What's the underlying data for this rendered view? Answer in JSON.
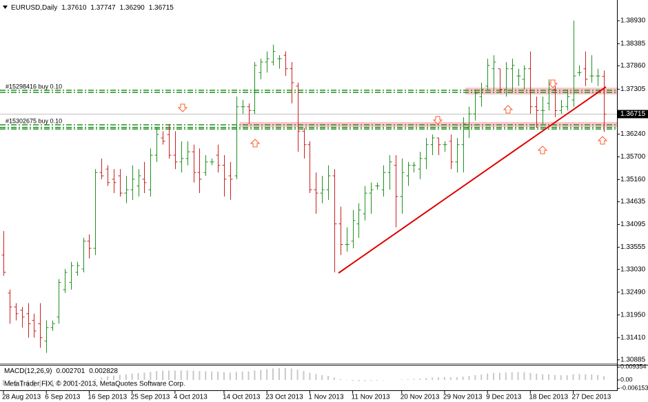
{
  "chart_data": [
    {
      "type": "ohlc",
      "title": "EURUSD,Daily",
      "header_values": [
        "1.37610",
        "1.37747",
        "1.36290",
        "1.36715"
      ],
      "categories": [
        "28 Aug 2013",
        null,
        null,
        null,
        null,
        null,
        null,
        "6 Sep 2013",
        null,
        null,
        null,
        null,
        null,
        null,
        "16 Sep 2013",
        null,
        null,
        null,
        null,
        null,
        null,
        "25 Sep 2013",
        null,
        null,
        null,
        null,
        null,
        null,
        "4 Oct 2013",
        null,
        null,
        null,
        null,
        null,
        null,
        null,
        "14 Oct 2013",
        null,
        null,
        null,
        null,
        null,
        null,
        "23 Oct 2013",
        null,
        null,
        null,
        null,
        null,
        null,
        "1 Nov 2013",
        null,
        null,
        null,
        null,
        null,
        null,
        "11 Nov 2013",
        null,
        null,
        null,
        null,
        null,
        null,
        null,
        "20 Nov 2013",
        null,
        null,
        null,
        null,
        null,
        null,
        "29 Nov 2013",
        null,
        null,
        null,
        null,
        null,
        null,
        "9 Dec 2013",
        null,
        null,
        null,
        null,
        null,
        null,
        "18 Dec 2013",
        null,
        null,
        null,
        null,
        null,
        null,
        "27 Dec 2013",
        null,
        null,
        null,
        null,
        null
      ],
      "open": [
        1.3337,
        1.3247,
        1.3214,
        1.3206,
        1.3198,
        1.3182,
        1.3174,
        1.3133,
        1.3165,
        1.319,
        1.3255,
        1.3272,
        1.3296,
        1.3304,
        1.337,
        1.3353,
        1.3533,
        1.3541,
        1.3517,
        1.3525,
        1.3484,
        1.3492,
        1.3501,
        1.3517,
        1.3492,
        1.3574,
        1.3615,
        1.3623,
        1.3574,
        1.3558,
        1.3566,
        1.3582,
        1.3533,
        1.3533,
        1.3558,
        1.3574,
        1.355,
        1.3525,
        1.3525,
        1.3689,
        1.3689,
        1.368,
        1.377,
        1.3795,
        1.3795,
        1.3803,
        1.3811,
        1.3779,
        1.3738,
        1.3631,
        1.3599,
        1.3492,
        1.3484,
        1.3492,
        1.3525,
        1.3411,
        1.3362,
        1.337,
        1.3411,
        1.3435,
        1.3484,
        1.3501,
        1.3492,
        1.3533,
        1.355,
        1.3476,
        1.3525,
        1.355,
        1.3541,
        1.3566,
        1.3599,
        1.3615,
        1.3599,
        1.3607,
        1.3558,
        1.3599,
        1.3639,
        1.3672,
        1.3713,
        1.3738,
        1.3779,
        1.3779,
        1.373,
        1.3779,
        1.3762,
        1.3754,
        1.3779,
        1.3689,
        1.368,
        1.3697,
        1.373,
        1.368,
        1.3689,
        1.3705,
        1.377,
        1.3779,
        1.3762,
        1.3762,
        1.3761
      ],
      "high": [
        1.3394,
        1.3255,
        1.3223,
        1.3214,
        1.3223,
        1.3198,
        1.3223,
        1.3182,
        1.3182,
        1.328,
        1.3304,
        1.3321,
        1.3321,
        1.3378,
        1.3386,
        1.3541,
        1.3566,
        1.355,
        1.3541,
        1.3541,
        1.3525,
        1.355,
        1.3541,
        1.3558,
        1.359,
        1.3639,
        1.3631,
        1.3648,
        1.3631,
        1.3607,
        1.3607,
        1.3599,
        1.359,
        1.3574,
        1.3566,
        1.3599,
        1.3574,
        1.3558,
        1.3713,
        1.3705,
        1.3697,
        1.3795,
        1.3803,
        1.382,
        1.3836,
        1.3811,
        1.382,
        1.3795,
        1.3746,
        1.3639,
        1.3607,
        1.3533,
        1.3525,
        1.355,
        1.3541,
        1.3452,
        1.3403,
        1.3444,
        1.346,
        1.3501,
        1.3509,
        1.3509,
        1.355,
        1.3574,
        1.3574,
        1.3566,
        1.3558,
        1.3558,
        1.3582,
        1.3615,
        1.3623,
        1.3615,
        1.3607,
        1.3623,
        1.3615,
        1.3664,
        1.3689,
        1.373,
        1.3746,
        1.3803,
        1.3811,
        1.3779,
        1.3795,
        1.3803,
        1.3779,
        1.3787,
        1.382,
        1.3713,
        1.3713,
        1.3754,
        1.3738,
        1.3705,
        1.373,
        1.3893,
        1.3787,
        1.382,
        1.3811,
        1.3779,
        1.37747
      ],
      "low": [
        1.3288,
        1.3174,
        1.3182,
        1.3165,
        1.3141,
        1.3141,
        1.3117,
        1.3105,
        1.3157,
        1.3174,
        1.3247,
        1.3255,
        1.3288,
        1.3296,
        1.3329,
        1.3337,
        1.3517,
        1.3501,
        1.3484,
        1.3476,
        1.346,
        1.3468,
        1.3476,
        1.3484,
        1.3476,
        1.3558,
        1.3599,
        1.3566,
        1.3541,
        1.3533,
        1.355,
        1.3509,
        1.3484,
        1.3525,
        1.355,
        1.3533,
        1.3476,
        1.3468,
        1.3517,
        1.3672,
        1.3648,
        1.3672,
        1.3754,
        1.377,
        1.3787,
        1.3779,
        1.3762,
        1.3697,
        1.3582,
        1.3566,
        1.3484,
        1.3435,
        1.346,
        1.3468,
        1.3296,
        1.3337,
        1.3345,
        1.3353,
        1.3378,
        1.3419,
        1.3435,
        1.3492,
        1.3476,
        1.3492,
        1.3403,
        1.3435,
        1.3501,
        1.3533,
        1.3517,
        1.3541,
        1.3574,
        1.3574,
        1.3582,
        1.3541,
        1.3533,
        1.3533,
        1.3615,
        1.3656,
        1.3689,
        1.373,
        1.373,
        1.3722,
        1.3713,
        1.3722,
        1.3738,
        1.373,
        1.3672,
        1.3639,
        1.3648,
        1.368,
        1.3664,
        1.3672,
        1.368,
        1.3689,
        1.3762,
        1.3738,
        1.3746,
        1.3738,
        1.3629
      ],
      "close": [
        1.3296,
        1.3214,
        1.3198,
        1.319,
        1.3174,
        1.3157,
        1.3141,
        1.3165,
        1.3174,
        1.3272,
        1.3296,
        1.3312,
        1.3312,
        1.337,
        1.3353,
        1.3533,
        1.3525,
        1.3509,
        1.3509,
        1.3484,
        1.3492,
        1.3517,
        1.3525,
        1.3509,
        1.3574,
        1.3623,
        1.3607,
        1.3574,
        1.3558,
        1.3566,
        1.3582,
        1.3533,
        1.3517,
        1.3558,
        1.3558,
        1.355,
        1.3517,
        1.3517,
        1.3689,
        1.3689,
        1.368,
        1.3787,
        1.3795,
        1.3803,
        1.382,
        1.3803,
        1.3779,
        1.3746,
        1.3631,
        1.3599,
        1.3492,
        1.3484,
        1.3492,
        1.3525,
        1.3411,
        1.3362,
        1.3362,
        1.3419,
        1.3444,
        1.3484,
        1.3492,
        1.3501,
        1.3533,
        1.3558,
        1.3476,
        1.3533,
        1.355,
        1.355,
        1.3566,
        1.3599,
        1.3615,
        1.3599,
        1.3599,
        1.3558,
        1.3599,
        1.3648,
        1.3672,
        1.3721,
        1.373,
        1.3787,
        1.3795,
        1.373,
        1.3779,
        1.3787,
        1.3762,
        1.3779,
        1.3689,
        1.368,
        1.368,
        1.373,
        1.368,
        1.3689,
        1.3713,
        1.3762,
        1.377,
        1.3754,
        1.3762,
        1.3762,
        1.36715
      ],
      "up_color": "#1f8f1f",
      "down_color": "#c81e1e",
      "ylim": [
        1.308,
        1.3934
      ],
      "yticks": [
        {
          "value": 1.3893,
          "label": "1.38930"
        },
        {
          "value": 1.38385,
          "label": "1.38385"
        },
        {
          "value": 1.3786,
          "label": "1.37860"
        },
        {
          "value": 1.37305,
          "label": "1.37305"
        },
        {
          "value": 1.3624,
          "label": "1.36240"
        },
        {
          "value": 1.357,
          "label": "1.35700"
        },
        {
          "value": 1.3516,
          "label": "1.35160"
        },
        {
          "value": 1.34635,
          "label": "1.34635"
        },
        {
          "value": 1.34095,
          "label": "1.34095"
        },
        {
          "value": 1.33555,
          "label": "1.33555"
        },
        {
          "value": 1.3303,
          "label": "1.33030"
        },
        {
          "value": 1.3249,
          "label": "1.32490"
        },
        {
          "value": 1.3195,
          "label": "1.31950"
        },
        {
          "value": 1.3141,
          "label": "1.31410"
        },
        {
          "value": 1.30885,
          "label": "1.30885"
        }
      ],
      "current_price": {
        "value": 1.36715,
        "label": "1.36715"
      },
      "orders": [
        {
          "label": "#15298416 buy 0.10",
          "levels": [
            1.3728,
            1.3723
          ],
          "color": "#1f8f1f"
        },
        {
          "label": "#15302675 buy 0.10",
          "levels": [
            1.3646,
            1.364,
            1.3636
          ],
          "color": "#1f8f1f"
        }
      ]
    },
    {
      "type": "bar",
      "title": "MACD(12,26,9)",
      "header_values": [
        "0.002701",
        "0.002828"
      ],
      "note": "MetaTrader FIX, © 2001-2013, MetaQuotes Software Corp.",
      "color": "#c8c8c8",
      "values": [
        -0.004,
        -0.0045,
        -0.0048,
        -0.005,
        -0.0052,
        -0.0053,
        -0.0055,
        -0.005,
        -0.0046,
        -0.004,
        -0.0032,
        -0.0025,
        -0.0018,
        -0.001,
        -0.0004,
        0.0008,
        0.0018,
        0.0026,
        0.0032,
        0.0037,
        0.0041,
        0.0046,
        0.005,
        0.0053,
        0.0058,
        0.0064,
        0.0067,
        0.0068,
        0.0068,
        0.0069,
        0.0069,
        0.0067,
        0.0064,
        0.0063,
        0.0062,
        0.006,
        0.0056,
        0.0053,
        0.0058,
        0.0061,
        0.0062,
        0.0068,
        0.0073,
        0.0078,
        0.0083,
        0.0086,
        0.0086,
        0.0083,
        0.0074,
        0.0065,
        0.0052,
        0.0043,
        0.0035,
        0.003,
        0.0017,
        0.0006,
        -0.0002,
        -0.0006,
        -0.0008,
        -0.0008,
        -0.0006,
        -0.0005,
        -0.0002,
        0.0001,
        0.0001,
        0.0003,
        0.0005,
        0.0007,
        0.001,
        0.0014,
        0.0017,
        0.0019,
        0.002,
        0.0019,
        0.002,
        0.0024,
        0.0029,
        0.0035,
        0.004,
        0.0046,
        0.0051,
        0.0052,
        0.0054,
        0.0056,
        0.0056,
        0.0056,
        0.005,
        0.0045,
        0.0041,
        0.004,
        0.0036,
        0.0034,
        0.0034,
        0.0041,
        0.0043,
        0.0042,
        0.004,
        0.0036,
        0.002701
      ],
      "ylim": [
        -0.0075,
        0.0105
      ],
      "yticks": [
        {
          "value": 0.009354,
          "label": "0.009354"
        },
        {
          "value": 0,
          "label": "0.00"
        },
        {
          "value": -0.006153,
          "label": "-0.006153"
        }
      ]
    }
  ]
}
